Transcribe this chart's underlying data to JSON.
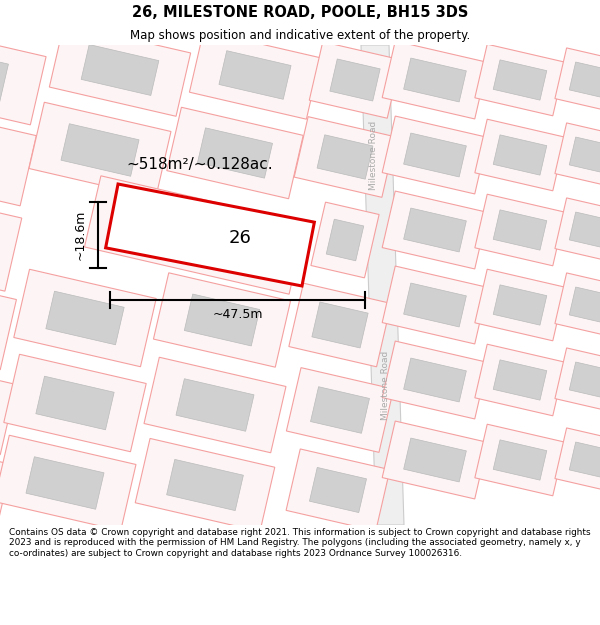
{
  "title": "26, MILESTONE ROAD, POOLE, BH15 3DS",
  "subtitle": "Map shows position and indicative extent of the property.",
  "footer": "Contains OS data © Crown copyright and database right 2021. This information is subject to Crown copyright and database rights 2023 and is reproduced with the permission of HM Land Registry. The polygons (including the associated geometry, namely x, y co-ordinates) are subject to Crown copyright and database rights 2023 Ordnance Survey 100026316.",
  "map_bg": "#ffffff",
  "road_line_color": "#f5a0a0",
  "building_fill": "#d0d0d0",
  "building_edge": "#bbbbbb",
  "plot_outline_color": "#dd0000",
  "road_label": "Milestone Road",
  "area_label": "~518m²/~0.128ac.",
  "plot_label": "26",
  "dim_width": "~47.5m",
  "dim_height": "~18.6m",
  "road_bg": "#f0f0f0",
  "road_edge": "#cccccc",
  "prop_fill": "#fdf5f5",
  "prop_edge": "#f5a0a0"
}
